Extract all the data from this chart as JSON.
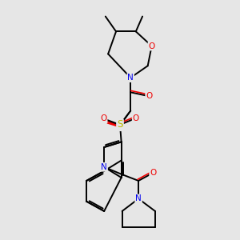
{
  "background_color": "#e6e6e6",
  "fig_size": [
    3.0,
    3.0
  ],
  "dpi": 100,
  "atom_colors": {
    "C": "#000000",
    "N": "#0000ee",
    "O": "#ee0000",
    "S": "#bbbb00",
    "H": "#000000"
  },
  "bond_color": "#000000",
  "bond_width": 1.4
}
